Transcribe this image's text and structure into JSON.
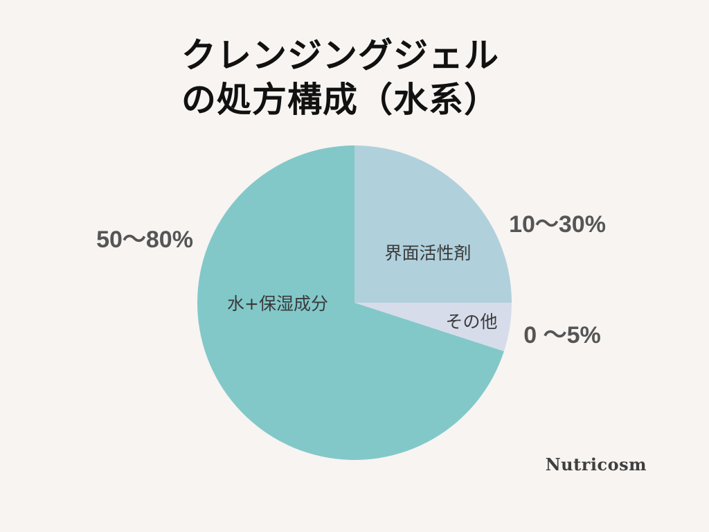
{
  "page": {
    "title_line1": "クレンジングジェル",
    "title_line2": "の処方構成（水系）",
    "brand": "Nutricosm"
  },
  "chart_data": {
    "type": "pie",
    "title": "クレンジングジェルの処方構成（水系）",
    "slices": [
      {
        "label": "界面活性剤",
        "value": 25,
        "range_label": "10〜30%",
        "color": "#b0d0dc"
      },
      {
        "label": "その他",
        "value": 5,
        "range_label": "0 〜5%",
        "color": "#d7dceb"
      },
      {
        "label": "水+保湿成分",
        "value": 70,
        "range_label": "50〜80%",
        "color": "#82c8c9"
      }
    ],
    "start_angle_deg": 0,
    "legend": "none",
    "grid": false
  }
}
